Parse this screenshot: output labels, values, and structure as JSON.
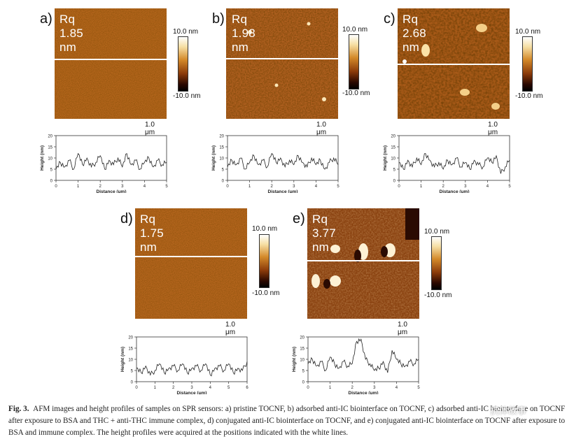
{
  "panels": [
    {
      "label": "a)",
      "rq": "Rq 1.85  nm",
      "cbar_top": "10.0 nm",
      "cbar_bottom": "-10.0 nm",
      "scale": "1.0 μm"
    },
    {
      "label": "b)",
      "rq": "Rq 1.98  nm",
      "cbar_top": "10.0 nm",
      "cbar_bottom": "-10.0 nm",
      "scale": "1.0 μm"
    },
    {
      "label": "c)",
      "rq": "Rq 2.68  nm",
      "cbar_top": "10.0 nm",
      "cbar_bottom": "-10.0 nm",
      "scale": "1.0 μm"
    },
    {
      "label": "d)",
      "rq": "Rq 1.75  nm",
      "cbar_top": "10.0 nm",
      "cbar_bottom": "-10.0 nm",
      "scale": "1.0 μm"
    },
    {
      "label": "e)",
      "rq": "Rq 3.77  nm",
      "cbar_top": "10.0 nm",
      "cbar_bottom": "-10.0 nm",
      "scale": "1.0 μm"
    }
  ],
  "chart_data": [
    {
      "type": "line",
      "panel": "a",
      "xlabel": "Distance (μm)",
      "ylabel": "Height (nm)",
      "xlim": [
        0,
        5
      ],
      "ylim": [
        0,
        20
      ],
      "xticks": [
        0,
        1,
        2,
        3,
        4,
        5
      ],
      "yticks": [
        0,
        5,
        10,
        15,
        20
      ],
      "series": [
        {
          "x": [
            0,
            0.2,
            0.4,
            0.6,
            0.8,
            1.0,
            1.2,
            1.4,
            1.6,
            1.8,
            2.0,
            2.2,
            2.4,
            2.6,
            2.8,
            3.0,
            3.2,
            3.4,
            3.6,
            3.8,
            4.0,
            4.2,
            4.4,
            4.6,
            4.8,
            5.0
          ],
          "y": [
            5,
            8,
            6,
            9,
            5,
            12,
            7,
            10,
            6,
            8,
            11,
            5,
            9,
            7,
            10,
            6,
            12,
            7,
            9,
            5,
            8,
            10,
            6,
            9,
            7,
            8
          ]
        }
      ]
    },
    {
      "type": "line",
      "panel": "b",
      "xlabel": "Distance (μm)",
      "ylabel": "Height (nm)",
      "xlim": [
        0,
        5
      ],
      "ylim": [
        0,
        20
      ],
      "xticks": [
        0,
        1,
        2,
        3,
        4,
        5
      ],
      "yticks": [
        0,
        5,
        10,
        15,
        20
      ],
      "series": [
        {
          "x": [
            0,
            0.2,
            0.4,
            0.6,
            0.8,
            1.0,
            1.2,
            1.4,
            1.6,
            1.8,
            2.0,
            2.2,
            2.4,
            2.6,
            2.8,
            3.0,
            3.2,
            3.4,
            3.6,
            3.8,
            4.0,
            4.2,
            4.4,
            4.6,
            4.8,
            5.0
          ],
          "y": [
            6,
            9,
            7,
            10,
            5,
            8,
            11,
            7,
            9,
            6,
            12,
            8,
            10,
            6,
            9,
            7,
            11,
            8,
            6,
            10,
            7,
            9,
            5,
            8,
            10,
            7
          ]
        }
      ]
    },
    {
      "type": "line",
      "panel": "c",
      "xlabel": "Distance (μm)",
      "ylabel": "Height (nm)",
      "xlim": [
        0,
        5
      ],
      "ylim": [
        0,
        20
      ],
      "xticks": [
        0,
        1,
        2,
        3,
        4,
        5
      ],
      "yticks": [
        0,
        5,
        10,
        15,
        20
      ],
      "series": [
        {
          "x": [
            0,
            0.2,
            0.4,
            0.6,
            0.8,
            1.0,
            1.2,
            1.4,
            1.6,
            1.8,
            2.0,
            2.2,
            2.4,
            2.6,
            2.8,
            3.0,
            3.2,
            3.4,
            3.6,
            3.8,
            4.0,
            4.2,
            4.4,
            4.6,
            4.8,
            5.0
          ],
          "y": [
            8,
            5,
            9,
            6,
            10,
            7,
            12,
            9,
            6,
            8,
            5,
            9,
            7,
            10,
            6,
            8,
            5,
            9,
            7,
            6,
            10,
            8,
            11,
            3,
            6,
            9
          ]
        }
      ]
    },
    {
      "type": "line",
      "panel": "d",
      "xlabel": "Distance (μm)",
      "ylabel": "Height (nm)",
      "xlim": [
        0,
        6
      ],
      "ylim": [
        0,
        20
      ],
      "xticks": [
        0,
        1,
        2,
        3,
        4,
        5,
        6
      ],
      "yticks": [
        0,
        5,
        10,
        15,
        20
      ],
      "series": [
        {
          "x": [
            0,
            0.25,
            0.5,
            0.75,
            1.0,
            1.25,
            1.5,
            1.75,
            2.0,
            2.25,
            2.5,
            2.75,
            3.0,
            3.25,
            3.5,
            3.75,
            4.0,
            4.25,
            4.5,
            4.75,
            5.0,
            5.25,
            5.5,
            5.75,
            6.0
          ],
          "y": [
            6,
            4,
            7,
            3,
            5,
            8,
            4,
            6,
            7,
            5,
            8,
            4,
            6,
            7,
            5,
            8,
            3,
            6,
            7,
            5,
            8,
            4,
            6,
            5,
            9
          ]
        }
      ]
    },
    {
      "type": "line",
      "panel": "e",
      "xlabel": "Distance (μm)",
      "ylabel": "Height (nm)",
      "xlim": [
        0,
        5
      ],
      "ylim": [
        0,
        20
      ],
      "xticks": [
        0,
        1,
        2,
        3,
        4,
        5
      ],
      "yticks": [
        0,
        5,
        10,
        15,
        20
      ],
      "series": [
        {
          "x": [
            0,
            0.2,
            0.4,
            0.6,
            0.8,
            1.0,
            1.2,
            1.4,
            1.6,
            1.8,
            2.0,
            2.2,
            2.4,
            2.6,
            2.8,
            3.0,
            3.2,
            3.4,
            3.6,
            3.8,
            4.0,
            4.2,
            4.4,
            4.6,
            4.8,
            5.0
          ],
          "y": [
            8,
            10,
            7,
            9,
            5,
            11,
            8,
            6,
            9,
            7,
            8,
            18,
            19,
            10,
            8,
            5,
            6,
            9,
            4,
            14,
            10,
            8,
            7,
            9,
            8,
            10
          ]
        }
      ]
    }
  ],
  "caption": {
    "label": "Fig. 3.",
    "text": "AFM images and height profiles of samples on SPR sensors: a) pristine TOCNF, b) adsorbed anti-IC biointerface on TOCNF, c) adsorbed anti-IC biointerface on TOCNF after exposure to BSA and THC + anti-THC immune complex, d) conjugated anti-IC biointerface on TOCNF, and e) conjugated anti-IC biointerface on TOCNF after exposure to BSA and immune complex. The height profiles were acquired at the positions indicated with the white lines."
  },
  "watermark": "抗体故事",
  "colors": {
    "afm_dark": "#5a2a06",
    "afm_mid": "#b5661c",
    "afm_light": "#f4d39a",
    "line": "#222222"
  }
}
